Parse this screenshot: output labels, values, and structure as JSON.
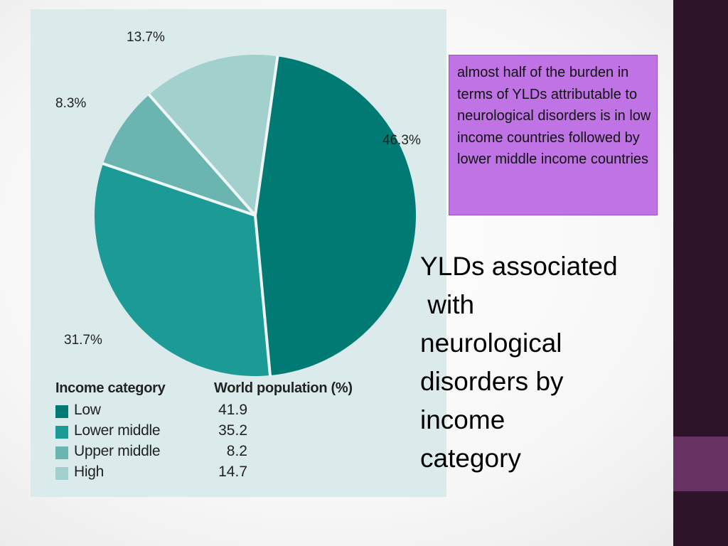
{
  "chart_data": {
    "type": "pie",
    "slices": [
      {
        "label": "Low",
        "value": 46.3,
        "label_text": "46.3%",
        "color": "#027a74"
      },
      {
        "label": "Lower middle",
        "value": 31.7,
        "label_text": "31.7%",
        "color": "#1b9a96"
      },
      {
        "label": "Upper middle",
        "value": 8.3,
        "label_text": "8.3%",
        "color": "#6bb5b1"
      },
      {
        "label": "High",
        "value": 13.7,
        "label_text": "13.7%",
        "color": "#a2d0cc"
      }
    ],
    "start_angle_deg": 8,
    "direction": "clockwise",
    "legend": {
      "header_category": "Income category",
      "header_value": "World population (%)",
      "rows": [
        {
          "label": "Low",
          "value": "41.9",
          "color": "#027a74"
        },
        {
          "label": "Lower middle",
          "value": "35.2",
          "color": "#1b9a96"
        },
        {
          "label": "Upper middle",
          "value": "8.2",
          "color": "#6bb5b1"
        },
        {
          "label": "High",
          "value": "14.7",
          "color": "#a2d0cc"
        }
      ]
    }
  },
  "note_text": "almost half of the burden in terms of YLDs attributable to neurological disorders is in low income countries followed by lower middle income countries",
  "title": "YLDs associated\n with\nneurological\ndisorders by\nincome\ncategory",
  "colors": {
    "sidebar": "#2e1428",
    "sidebar_accent": "#673262",
    "note_bg": "#bf73e5",
    "panel_bg": "#dbeaea"
  }
}
